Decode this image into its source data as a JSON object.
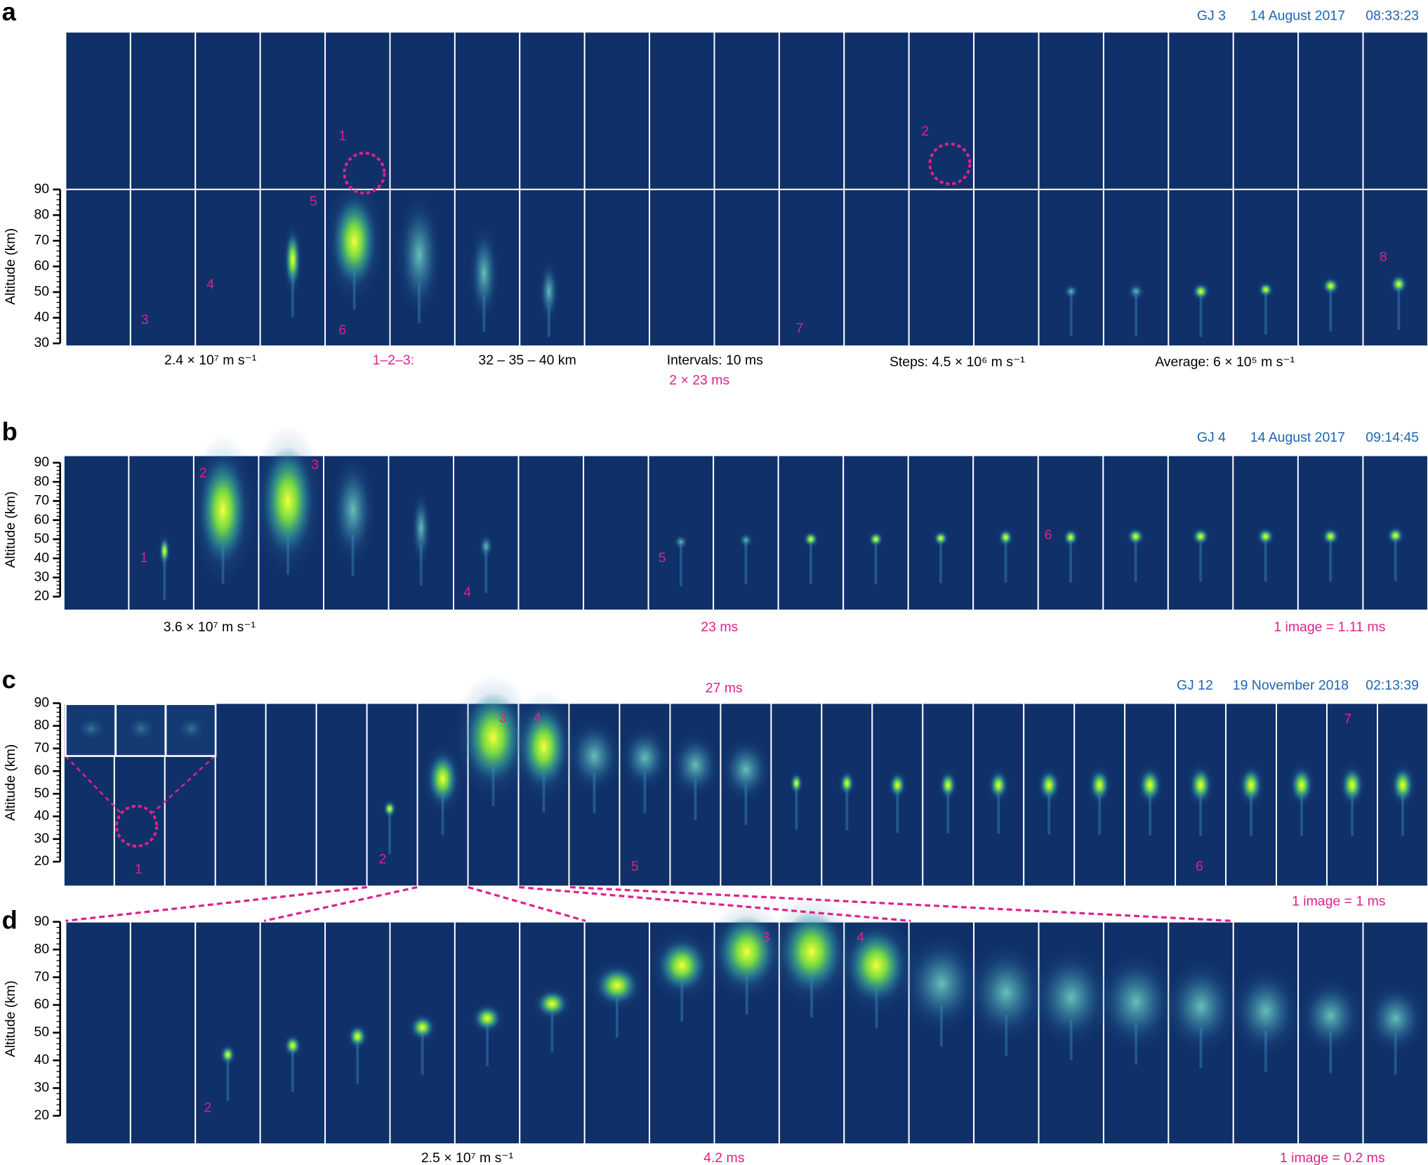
{
  "panels": [
    {
      "label": "a",
      "header": [
        "GJ 3",
        "14 August 2017",
        "08:33:23"
      ],
      "axis_label": "Altitude (km)",
      "yticks": [
        90,
        80,
        70,
        60,
        50,
        40,
        30
      ],
      "annotations": [
        "1",
        "2",
        "3",
        "4",
        "5",
        "6",
        "7",
        "8"
      ],
      "captions": [
        "2.4 × 10⁷ m s⁻¹",
        "1–2–3:",
        "32 – 35 – 40 km",
        "Intervals: 10 ms",
        "2 × 23 ms",
        "Steps: 4.5 × 10⁶ m s⁻¹",
        "Average: 6 × 10⁵ m s⁻¹"
      ]
    },
    {
      "label": "b",
      "header": [
        "GJ 4",
        "14 August 2017",
        "09:14:45"
      ],
      "axis_label": "Altitude (km)",
      "yticks": [
        90,
        80,
        70,
        60,
        50,
        40,
        30,
        20
      ],
      "annotations": [
        "1",
        "2",
        "3",
        "4",
        "5",
        "6"
      ],
      "captions": [
        "3.6 × 10⁷ m s⁻¹",
        "23 ms",
        "1 image = 1.11 ms"
      ]
    },
    {
      "label": "c",
      "header": [
        "GJ 12",
        "19 November 2018",
        "02:13:39"
      ],
      "axis_label": "Altitude (km)",
      "yticks": [
        90,
        80,
        70,
        60,
        50,
        40,
        30,
        20
      ],
      "annotations": [
        "1",
        "2",
        "3",
        "4",
        "5",
        "6",
        "7"
      ],
      "captions": [
        "27 ms",
        "1 image = 1 ms"
      ]
    },
    {
      "label": "d",
      "axis_label": "Altitude (km)",
      "yticks": [
        90,
        80,
        70,
        60,
        50,
        40,
        30,
        20
      ],
      "annotations": [
        "2",
        "3",
        "4"
      ],
      "captions": [
        "2.5 × 10⁷ m s⁻¹",
        "4.2 ms",
        "1 image = 0.2 ms"
      ]
    }
  ]
}
